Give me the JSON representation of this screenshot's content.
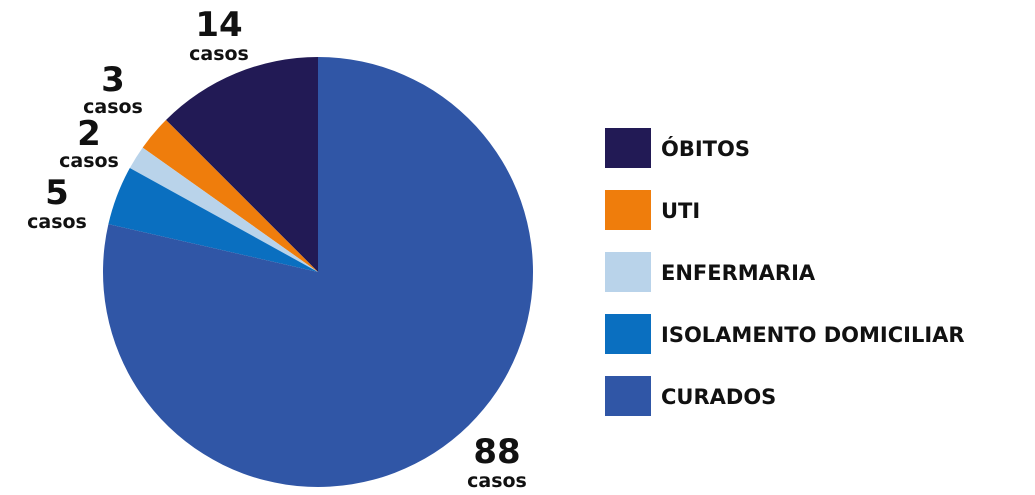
{
  "chart_data": {
    "type": "pie",
    "categories": [
      "ÓBITOS",
      "UTI",
      "ENFERMARIA",
      "ISOLAMENTO DOMICILIAR",
      "CURADOS"
    ],
    "values": [
      14,
      3,
      2,
      5,
      88
    ],
    "colors": [
      "#221a55",
      "#ef7d0c",
      "#b9d3ea",
      "#0a6fc0",
      "#3056a6"
    ],
    "data_labels": [
      {
        "number": "14",
        "unit": "casos"
      },
      {
        "number": "3",
        "unit": "casos"
      },
      {
        "number": "2",
        "unit": "casos"
      },
      {
        "number": "5",
        "unit": "casos"
      },
      {
        "number": "88",
        "unit": "casos"
      }
    ],
    "legend": {
      "position": "right",
      "entries": [
        "ÓBITOS",
        "UTI",
        "ENFERMARIA",
        "ISOLAMENTO DOMICILIAR",
        "CURADOS"
      ]
    },
    "start_angle": "12 o'clock",
    "direction": "counterclockwise"
  }
}
